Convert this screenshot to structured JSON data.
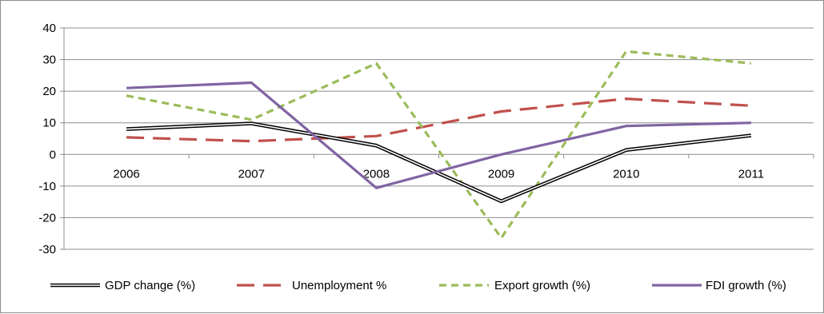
{
  "chart_data": {
    "type": "line",
    "title": "",
    "xlabel": "",
    "ylabel": "",
    "categories": [
      "2006",
      "2007",
      "2008",
      "2009",
      "2010",
      "2011"
    ],
    "ylim": [
      -30,
      40
    ],
    "yticks": [
      -30,
      -20,
      -10,
      0,
      10,
      20,
      30,
      40
    ],
    "grid": true,
    "legend_position": "bottom",
    "series": [
      {
        "name": "GDP change (%)",
        "values": [
          8,
          9.8,
          2.8,
          -14.8,
          1.4,
          6
        ],
        "color": "#000000",
        "style": "double"
      },
      {
        "name": "Unemployment %",
        "values": [
          5.4,
          4.2,
          5.8,
          13.6,
          17.6,
          15.4
        ],
        "color": "#c0504d",
        "style": "long-dash"
      },
      {
        "name": "Export growth (%)",
        "values": [
          18.6,
          11,
          28.8,
          -26.4,
          32.6,
          28.8
        ],
        "color": "#9bbb59",
        "style": "short-dash"
      },
      {
        "name": "FDI growth (%)",
        "values": [
          21,
          22.7,
          -10.6,
          0,
          9,
          10
        ],
        "color": "#8064a2",
        "style": "solid"
      }
    ]
  }
}
